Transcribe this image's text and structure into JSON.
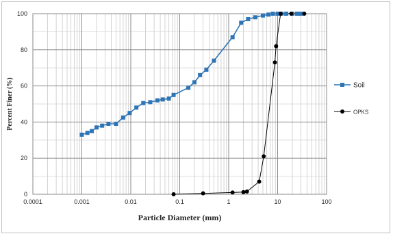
{
  "chart_data": {
    "type": "scatter",
    "title": "",
    "xlabel": "Particle Diameter (mm)",
    "ylabel": "Percent Finer (%)",
    "x_scale": "log",
    "xlim": [
      0.0001,
      100
    ],
    "ylim": [
      0,
      100
    ],
    "x_tick_labels": [
      "0.0001",
      "0.001",
      "0.01",
      "0.1",
      "1",
      "10",
      "100"
    ],
    "y_tick_labels": [
      "0",
      "20",
      "40",
      "60",
      "80",
      "100"
    ],
    "grid": true,
    "legend_position": "right",
    "series": [
      {
        "name": "Soil",
        "color": "#2e75b6",
        "marker": "square",
        "x": [
          0.001,
          0.0013,
          0.0016,
          0.002,
          0.0026,
          0.0035,
          0.005,
          0.007,
          0.0095,
          0.013,
          0.018,
          0.025,
          0.035,
          0.045,
          0.06,
          0.075,
          0.15,
          0.2,
          0.26,
          0.35,
          0.5,
          1.2,
          1.8,
          2.5,
          3.5,
          5,
          6.5,
          8,
          10,
          12,
          15,
          20,
          25,
          30
        ],
        "y": [
          33,
          34,
          35,
          37,
          38,
          39,
          39,
          42.5,
          45,
          48,
          50.5,
          51,
          52,
          52.5,
          53,
          55,
          59,
          62,
          66,
          69,
          74,
          87,
          95,
          97,
          98,
          99,
          99.5,
          100,
          100,
          100,
          100,
          100,
          100,
          100
        ]
      },
      {
        "name": "OPKS",
        "color": "#000000",
        "marker": "circle",
        "x": [
          0.075,
          0.3,
          1.2,
          2,
          2.36,
          4.2,
          5.2,
          8.8,
          9.3,
          11.5,
          19,
          35
        ],
        "y": [
          0,
          0.5,
          1,
          1.2,
          1.5,
          7,
          21,
          73,
          82,
          100,
          100,
          100
        ]
      }
    ]
  }
}
